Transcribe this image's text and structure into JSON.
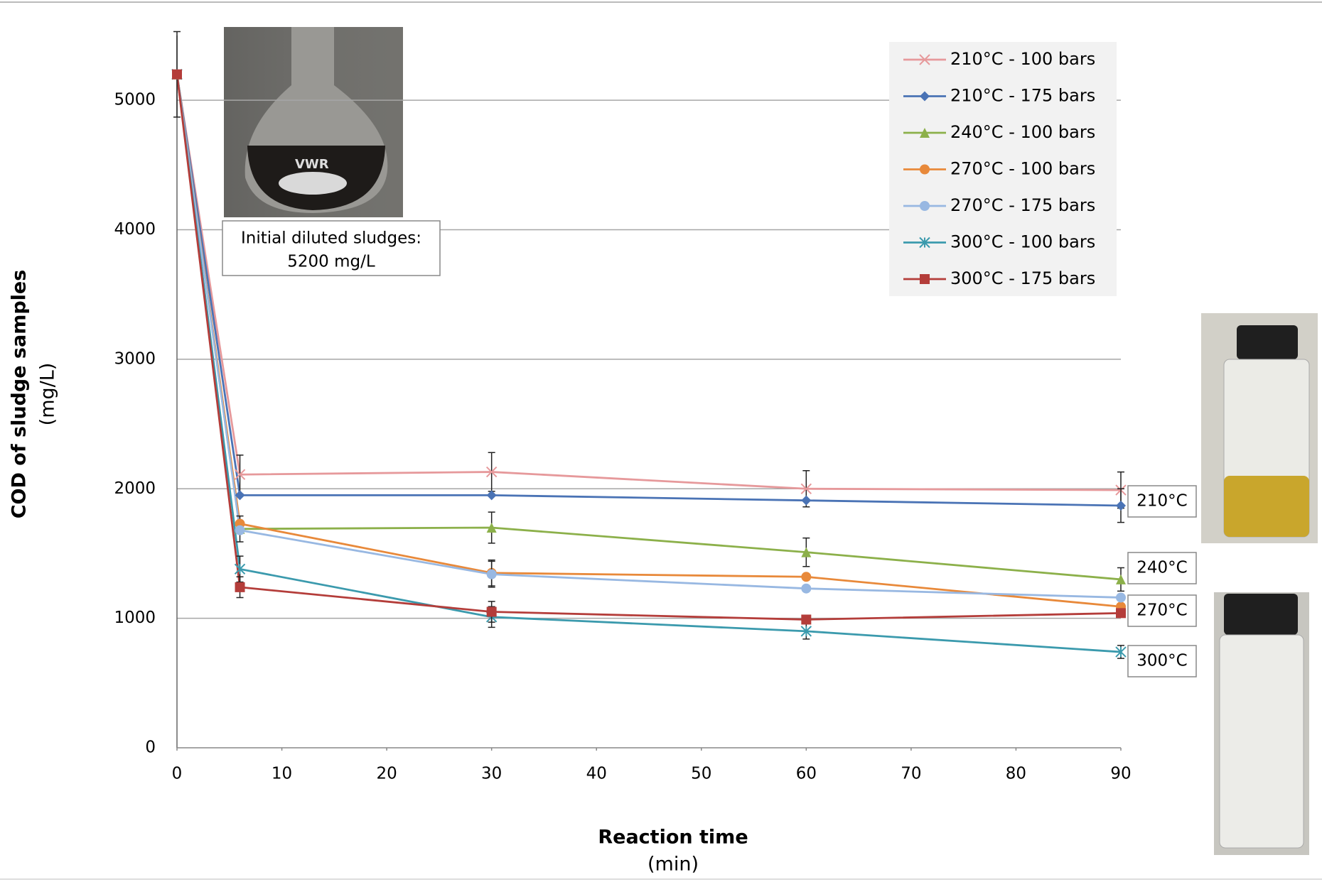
{
  "chart_data": {
    "type": "line",
    "x_label": "Reaction time",
    "x_unit": "(min)",
    "y_label": "COD of sludge samples",
    "y_unit": "(mg/L)",
    "x": [
      0,
      6,
      30,
      60,
      90
    ],
    "xlim": [
      0,
      90
    ],
    "xticks": [
      0,
      10,
      20,
      30,
      40,
      50,
      60,
      70,
      80,
      90
    ],
    "ylim": [
      0,
      5500
    ],
    "yticks": [
      0,
      1000,
      2000,
      3000,
      4000,
      5000
    ],
    "grid": true,
    "legend": "upper right",
    "series": [
      {
        "name": "210°C - 100 bars",
        "color": "#e6999b",
        "marker": "x",
        "values": [
          5200,
          2110,
          2130,
          2000,
          1990
        ],
        "errors": [
          330,
          150,
          150,
          140,
          140
        ]
      },
      {
        "name": "210°C - 175 bars",
        "color": "#4a73b5",
        "marker": "diamond",
        "values": [
          5200,
          1950,
          1950,
          1910,
          1870
        ],
        "errors": [
          null,
          null,
          null,
          null,
          130
        ]
      },
      {
        "name": "240°C - 100 bars",
        "color": "#8cb04a",
        "marker": "triangle",
        "values": [
          5200,
          1690,
          1700,
          1510,
          1300
        ],
        "errors": [
          null,
          100,
          120,
          110,
          90
        ]
      },
      {
        "name": "270°C - 100 bars",
        "color": "#e8893a",
        "marker": "circle",
        "values": [
          5200,
          1730,
          1350,
          1320,
          1090
        ],
        "errors": [
          null,
          null,
          100,
          null,
          null
        ]
      },
      {
        "name": "270°C - 175 bars",
        "color": "#98b8e2",
        "marker": "circle",
        "values": [
          5200,
          1680,
          1340,
          1230,
          1160
        ],
        "errors": [
          null,
          null,
          100,
          null,
          null
        ]
      },
      {
        "name": "300°C - 100 bars",
        "color": "#3b9aad",
        "marker": "asterisk",
        "values": [
          5200,
          1380,
          1010,
          900,
          740
        ],
        "errors": [
          null,
          100,
          80,
          60,
          50
        ]
      },
      {
        "name": "300°C - 175 bars",
        "color": "#b43d3a",
        "marker": "square",
        "values": [
          5200,
          1240,
          1050,
          990,
          1040
        ],
        "errors": [
          null,
          80,
          80,
          null,
          null
        ]
      }
    ],
    "annotation": [
      "Initial diluted sludges:",
      "5200 mg/L"
    ],
    "end_labels": [
      "210°C",
      "240°C",
      "270°C",
      "300°C"
    ]
  }
}
